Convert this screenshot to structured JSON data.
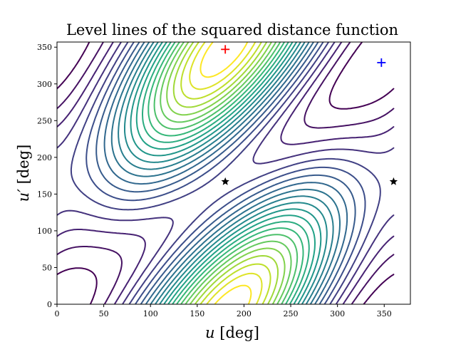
{
  "chart_data": {
    "type": "contour",
    "title": "Level lines of the squared distance function",
    "xlabel_var": "u",
    "xlabel_unit": " [deg]",
    "ylabel_var": "u′",
    "ylabel_unit": " [deg]",
    "xlim": [
      0,
      378
    ],
    "ylim": [
      0,
      357
    ],
    "domain": {
      "u": [
        0,
        360
      ],
      "u_prime": [
        0,
        360
      ]
    },
    "xticks": [
      "0",
      "50",
      "100",
      "150",
      "200",
      "250",
      "300",
      "350"
    ],
    "yticks": [
      "0",
      "50",
      "100",
      "150",
      "200",
      "250",
      "300",
      "350"
    ],
    "n_levels": 22,
    "colormap": "viridis",
    "model": {
      "phase_deg": 13,
      "ridge_center_deg": 185,
      "ridge_amp": 0.6,
      "valley_min_deg": 347,
      "valley_amp": 0.4
    },
    "markers": [
      {
        "name": "maximum",
        "symbol": "+",
        "color": "#ff0000",
        "u": 180,
        "u_prime": 347
      },
      {
        "name": "minimum",
        "symbol": "+",
        "color": "#0000ff",
        "u": 347,
        "u_prime": 329
      },
      {
        "name": "saddle-1",
        "symbol": "star",
        "color": "#000000",
        "u": 180,
        "u_prime": 167
      },
      {
        "name": "saddle-2",
        "symbol": "star",
        "color": "#000000",
        "u": 360,
        "u_prime": 167
      }
    ]
  }
}
